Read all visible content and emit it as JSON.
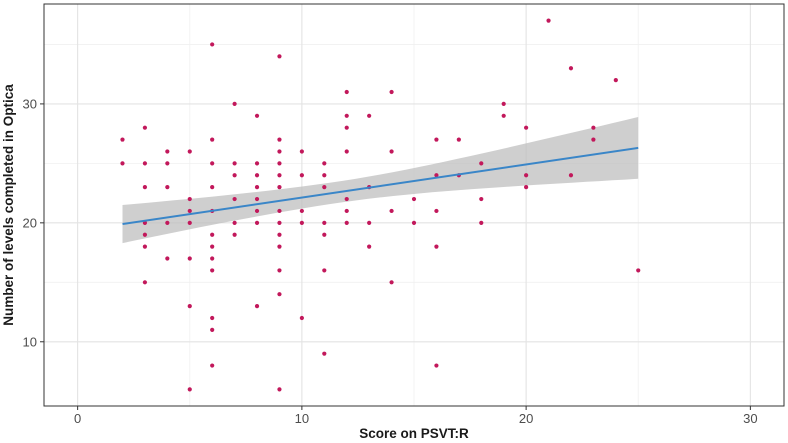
{
  "chart_data": {
    "type": "scatter",
    "title": "",
    "xlabel": "Score on PSVT:R",
    "ylabel": "Number of levels completed in Optica",
    "xlim": [
      -1.5,
      31.5
    ],
    "ylim": [
      4.6,
      38.4
    ],
    "x_ticks": [
      0,
      10,
      20,
      30
    ],
    "y_ticks": [
      10,
      20,
      30
    ],
    "x_tick_labels": [
      "0",
      "10",
      "20",
      "30"
    ],
    "y_tick_labels": [
      "10",
      "20",
      "30"
    ],
    "grid": true,
    "legend": "none",
    "point_color": "#c2185b",
    "line_color": "#3a86c8",
    "band_color": "#bfbfbf",
    "points": [
      [
        2,
        27
      ],
      [
        2,
        25
      ],
      [
        3,
        28
      ],
      [
        3,
        25
      ],
      [
        3,
        23
      ],
      [
        3,
        20
      ],
      [
        3,
        19
      ],
      [
        3,
        18
      ],
      [
        3,
        15
      ],
      [
        4,
        26
      ],
      [
        4,
        25
      ],
      [
        4,
        23
      ],
      [
        4,
        20
      ],
      [
        4,
        17
      ],
      [
        5,
        26
      ],
      [
        5,
        22
      ],
      [
        5,
        21
      ],
      [
        5,
        20
      ],
      [
        5,
        17
      ],
      [
        5,
        13
      ],
      [
        5,
        6
      ],
      [
        6,
        35
      ],
      [
        6,
        27
      ],
      [
        6,
        25
      ],
      [
        6,
        23
      ],
      [
        6,
        21
      ],
      [
        6,
        19
      ],
      [
        6,
        18
      ],
      [
        6,
        17
      ],
      [
        6,
        16
      ],
      [
        6,
        12
      ],
      [
        6,
        11
      ],
      [
        6,
        8
      ],
      [
        7,
        30
      ],
      [
        7,
        25
      ],
      [
        7,
        24
      ],
      [
        7,
        22
      ],
      [
        7,
        20
      ],
      [
        7,
        19
      ],
      [
        8,
        29
      ],
      [
        8,
        25
      ],
      [
        8,
        24
      ],
      [
        8,
        23
      ],
      [
        8,
        22
      ],
      [
        8,
        21
      ],
      [
        8,
        20
      ],
      [
        8,
        13
      ],
      [
        9,
        34
      ],
      [
        9,
        27
      ],
      [
        9,
        26
      ],
      [
        9,
        25
      ],
      [
        9,
        24
      ],
      [
        9,
        23
      ],
      [
        9,
        21
      ],
      [
        9,
        20
      ],
      [
        9,
        19
      ],
      [
        9,
        18
      ],
      [
        9,
        16
      ],
      [
        9,
        14
      ],
      [
        9,
        6
      ],
      [
        10,
        26
      ],
      [
        10,
        24
      ],
      [
        10,
        21
      ],
      [
        10,
        20
      ],
      [
        10,
        12
      ],
      [
        11,
        25
      ],
      [
        11,
        24
      ],
      [
        11,
        23
      ],
      [
        11,
        20
      ],
      [
        11,
        19
      ],
      [
        11,
        16
      ],
      [
        11,
        9
      ],
      [
        12,
        31
      ],
      [
        12,
        29
      ],
      [
        12,
        28
      ],
      [
        12,
        26
      ],
      [
        12,
        22
      ],
      [
        12,
        21
      ],
      [
        12,
        20
      ],
      [
        13,
        29
      ],
      [
        13,
        23
      ],
      [
        13,
        20
      ],
      [
        13,
        18
      ],
      [
        14,
        31
      ],
      [
        14,
        26
      ],
      [
        14,
        21
      ],
      [
        14,
        15
      ],
      [
        15,
        22
      ],
      [
        15,
        20
      ],
      [
        16,
        27
      ],
      [
        16,
        24
      ],
      [
        16,
        21
      ],
      [
        16,
        18
      ],
      [
        16,
        8
      ],
      [
        17,
        27
      ],
      [
        17,
        24
      ],
      [
        18,
        25
      ],
      [
        18,
        22
      ],
      [
        18,
        20
      ],
      [
        19,
        30
      ],
      [
        19,
        29
      ],
      [
        20,
        28
      ],
      [
        20,
        24
      ],
      [
        20,
        23
      ],
      [
        21,
        37
      ],
      [
        22,
        33
      ],
      [
        22,
        24
      ],
      [
        23,
        28
      ],
      [
        23,
        27
      ],
      [
        24,
        32
      ],
      [
        25,
        16
      ]
    ],
    "fit_line": {
      "x": [
        2,
        25
      ],
      "y": [
        19.9,
        26.3
      ],
      "ci_lower": [
        18.3,
        23.7
      ],
      "ci_upper": [
        21.5,
        28.9
      ]
    }
  }
}
